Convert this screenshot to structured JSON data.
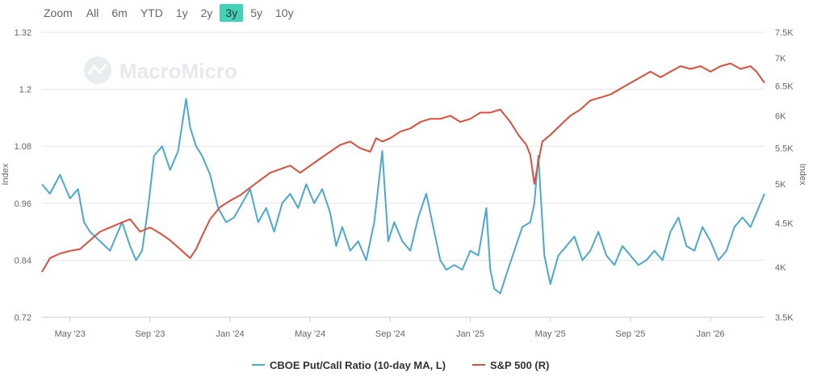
{
  "zoom": {
    "label": "Zoom",
    "buttons": [
      "All",
      "6m",
      "YTD",
      "1y",
      "2y",
      "3y",
      "5y",
      "10y"
    ],
    "active": "3y"
  },
  "watermark": "MacroMicro",
  "colors": {
    "left": "#4aa9d4",
    "right": "#dd4f3a",
    "active": "#42d3b6"
  },
  "chart_data": {
    "type": "line",
    "x_tick_labels": [
      "May '23",
      "Sep '23",
      "Jan '24",
      "May '24",
      "Sep '24",
      "Jan '25",
      "May '25",
      "Sep '25",
      "Jan '26"
    ],
    "x_tick_months": [
      4,
      8,
      12,
      16,
      20,
      24,
      28,
      32,
      36
    ],
    "x_range_months": [
      2.6,
      38.7
    ],
    "left_axis": {
      "title": "Index",
      "range": [
        0.72,
        1.32
      ],
      "ticks": [
        0.72,
        0.84,
        0.96,
        1.08,
        1.2,
        1.32
      ],
      "tick_labels": [
        "0.72",
        "0.84",
        "0.96",
        "1.08",
        "1.2",
        "1.32"
      ]
    },
    "right_axis": {
      "title": "Index",
      "scale": "log",
      "range": [
        3500,
        7500
      ],
      "ticks": [
        3500,
        4000,
        4500,
        5000,
        5500,
        6000,
        6500,
        7000,
        7500
      ],
      "tick_labels": [
        "3.5K",
        "4K",
        "4.5K",
        "5K",
        "5.5K",
        "6K",
        "6.5K",
        "7K",
        "7.5K"
      ]
    },
    "series": [
      {
        "name": "CBOE Put/Call Ratio (10-day MA, L)",
        "axis": "left",
        "x_months": [
          2.6,
          3.0,
          3.5,
          4.0,
          4.4,
          4.7,
          5.0,
          5.5,
          6.0,
          6.3,
          6.6,
          7.0,
          7.3,
          7.6,
          7.9,
          8.2,
          8.6,
          9.0,
          9.4,
          9.8,
          10.0,
          10.3,
          10.6,
          11.0,
          11.4,
          11.8,
          12.2,
          12.6,
          13.0,
          13.4,
          13.8,
          14.2,
          14.6,
          15.0,
          15.4,
          15.8,
          16.2,
          16.6,
          17.0,
          17.3,
          17.6,
          18.0,
          18.4,
          18.8,
          19.2,
          19.6,
          19.9,
          20.2,
          20.6,
          21.0,
          21.4,
          21.8,
          22.2,
          22.5,
          22.8,
          23.2,
          23.6,
          24.0,
          24.4,
          24.8,
          25.0,
          25.2,
          25.5,
          25.8,
          26.2,
          26.6,
          27.0,
          27.2,
          27.4,
          27.7,
          28.0,
          28.4,
          28.8,
          29.2,
          29.6,
          30.0,
          30.4,
          30.8,
          31.2,
          31.6,
          32.0,
          32.4,
          32.8,
          33.2,
          33.6,
          34.0,
          34.4,
          34.8,
          35.2,
          35.6,
          36.0,
          36.4,
          36.8,
          37.2,
          37.6,
          38.0,
          38.4,
          38.7
        ],
        "values": [
          1.0,
          0.98,
          1.02,
          0.97,
          0.99,
          0.92,
          0.9,
          0.88,
          0.86,
          0.89,
          0.92,
          0.87,
          0.84,
          0.86,
          0.95,
          1.06,
          1.08,
          1.03,
          1.07,
          1.18,
          1.12,
          1.08,
          1.06,
          1.02,
          0.95,
          0.92,
          0.93,
          0.96,
          0.99,
          0.92,
          0.95,
          0.9,
          0.96,
          0.98,
          0.95,
          1.0,
          0.96,
          0.99,
          0.94,
          0.87,
          0.91,
          0.86,
          0.88,
          0.84,
          0.92,
          1.07,
          0.88,
          0.92,
          0.88,
          0.86,
          0.93,
          0.98,
          0.9,
          0.84,
          0.82,
          0.83,
          0.82,
          0.86,
          0.85,
          0.95,
          0.82,
          0.78,
          0.77,
          0.81,
          0.86,
          0.91,
          0.92,
          0.96,
          1.06,
          0.85,
          0.79,
          0.85,
          0.87,
          0.89,
          0.84,
          0.86,
          0.9,
          0.85,
          0.83,
          0.87,
          0.85,
          0.83,
          0.84,
          0.86,
          0.84,
          0.9,
          0.93,
          0.87,
          0.86,
          0.91,
          0.88,
          0.84,
          0.86,
          0.91,
          0.93,
          0.91,
          0.95,
          0.98
        ]
      },
      {
        "name": "S&P 500 (R)",
        "axis": "right",
        "x_months": [
          2.6,
          3.0,
          3.5,
          4.0,
          4.5,
          5.0,
          5.5,
          6.0,
          6.5,
          7.0,
          7.5,
          8.0,
          8.5,
          9.0,
          9.5,
          10.0,
          10.3,
          10.6,
          11.0,
          11.5,
          12.0,
          12.5,
          13.0,
          13.5,
          14.0,
          14.5,
          15.0,
          15.5,
          16.0,
          16.5,
          17.0,
          17.5,
          18.0,
          18.5,
          19.0,
          19.3,
          19.6,
          20.0,
          20.5,
          21.0,
          21.5,
          22.0,
          22.5,
          23.0,
          23.5,
          24.0,
          24.5,
          25.0,
          25.5,
          26.0,
          26.4,
          26.8,
          27.0,
          27.2,
          27.4,
          27.6,
          28.0,
          28.5,
          29.0,
          29.5,
          30.0,
          30.5,
          31.0,
          31.5,
          32.0,
          32.5,
          33.0,
          33.5,
          34.0,
          34.5,
          35.0,
          35.5,
          36.0,
          36.5,
          37.0,
          37.5,
          38.0,
          38.3,
          38.5,
          38.7
        ],
        "values": [
          3950,
          4100,
          4150,
          4180,
          4200,
          4300,
          4400,
          4450,
          4500,
          4550,
          4400,
          4450,
          4380,
          4300,
          4200,
          4100,
          4200,
          4350,
          4550,
          4700,
          4780,
          4850,
          4950,
          5050,
          5150,
          5200,
          5250,
          5150,
          5250,
          5350,
          5450,
          5550,
          5600,
          5500,
          5450,
          5650,
          5600,
          5650,
          5750,
          5800,
          5900,
          5950,
          5950,
          6000,
          5900,
          5950,
          6050,
          6050,
          6100,
          5900,
          5700,
          5550,
          5400,
          5000,
          5300,
          5600,
          5700,
          5850,
          6000,
          6100,
          6250,
          6300,
          6350,
          6450,
          6550,
          6650,
          6750,
          6650,
          6750,
          6850,
          6800,
          6850,
          6750,
          6850,
          6900,
          6800,
          6850,
          6750,
          6650,
          6550
        ]
      }
    ]
  }
}
